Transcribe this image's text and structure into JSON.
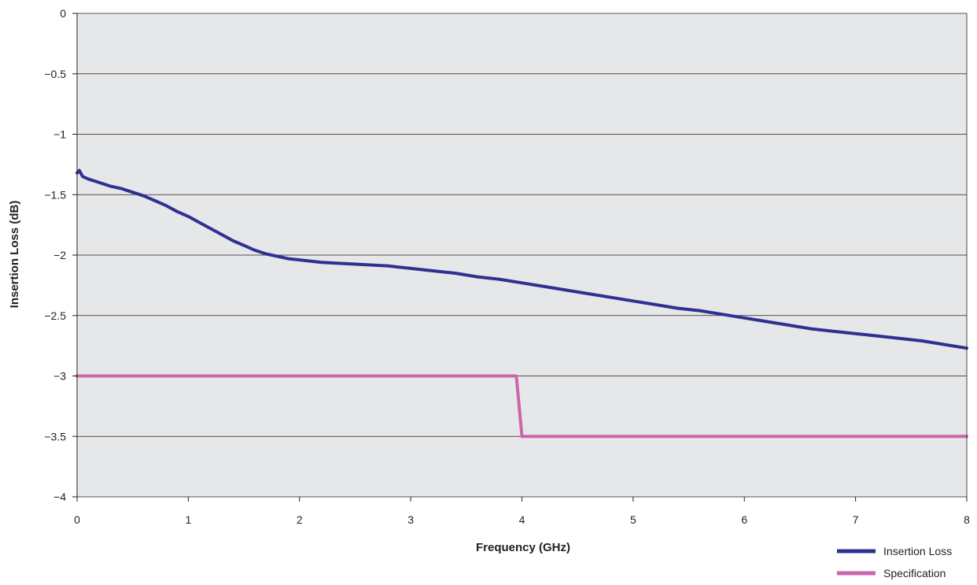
{
  "chart_data": {
    "type": "line",
    "xlabel": "Frequency (GHz)",
    "ylabel": "Insertion Loss (dB)",
    "xlim": [
      0,
      8
    ],
    "ylim": [
      -4,
      0
    ],
    "x_ticks": [
      0,
      1,
      2,
      3,
      4,
      5,
      6,
      7,
      8
    ],
    "y_ticks": [
      0,
      -0.5,
      -1,
      -1.5,
      -2,
      -2.5,
      -3,
      -3.5,
      -4
    ],
    "x_tick_labels": [
      "0",
      "1",
      "2",
      "3",
      "4",
      "5",
      "6",
      "7",
      "8"
    ],
    "y_tick_labels": [
      "0",
      "−0.5",
      "−1",
      "−1.5",
      "−2",
      "−2.5",
      "−3",
      "−3.5",
      "−4"
    ],
    "grid": "horizontal",
    "plot_background": "#e6e7e8",
    "legend_position": "bottom-right",
    "series": [
      {
        "name": "Insertion Loss",
        "color": "#2e3192",
        "x": [
          0,
          0.02,
          0.05,
          0.1,
          0.2,
          0.3,
          0.4,
          0.5,
          0.6,
          0.7,
          0.8,
          0.9,
          1.0,
          1.1,
          1.2,
          1.3,
          1.4,
          1.5,
          1.6,
          1.7,
          1.8,
          1.9,
          2.0,
          2.2,
          2.4,
          2.6,
          2.8,
          3.0,
          3.2,
          3.4,
          3.6,
          3.8,
          4.0,
          4.2,
          4.4,
          4.6,
          4.8,
          5.0,
          5.2,
          5.4,
          5.6,
          5.8,
          6.0,
          6.2,
          6.4,
          6.6,
          6.8,
          7.0,
          7.2,
          7.4,
          7.6,
          7.8,
          8.0
        ],
        "y": [
          -1.32,
          -1.3,
          -1.35,
          -1.37,
          -1.4,
          -1.43,
          -1.45,
          -1.48,
          -1.51,
          -1.55,
          -1.59,
          -1.64,
          -1.68,
          -1.73,
          -1.78,
          -1.83,
          -1.88,
          -1.92,
          -1.96,
          -1.99,
          -2.01,
          -2.03,
          -2.04,
          -2.06,
          -2.07,
          -2.08,
          -2.09,
          -2.11,
          -2.13,
          -2.15,
          -2.18,
          -2.2,
          -2.23,
          -2.26,
          -2.29,
          -2.32,
          -2.35,
          -2.38,
          -2.41,
          -2.44,
          -2.46,
          -2.49,
          -2.52,
          -2.55,
          -2.58,
          -2.61,
          -2.63,
          -2.65,
          -2.67,
          -2.69,
          -2.71,
          -2.74,
          -2.77
        ]
      },
      {
        "name": "Specification",
        "color": "#cc66aa",
        "x": [
          0,
          3.92,
          3.95,
          4.0,
          8.0
        ],
        "y": [
          -3.0,
          -3.0,
          -3.0,
          -3.5,
          -3.5
        ]
      }
    ]
  }
}
